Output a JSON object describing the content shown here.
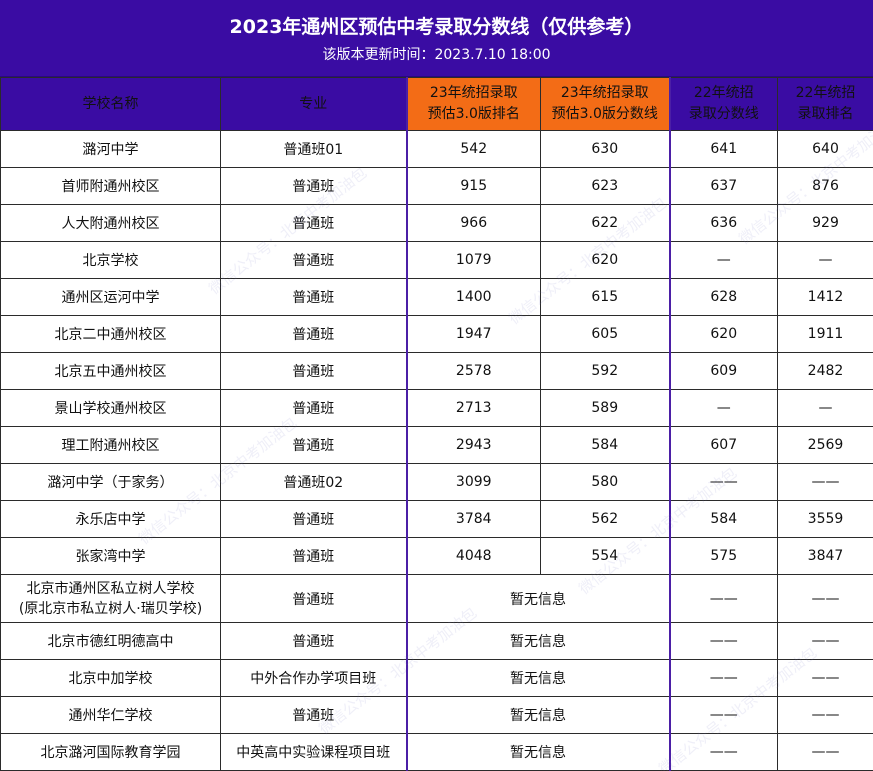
{
  "header": {
    "title": "2023年通州区预估中考录取分数线（仅供参考）",
    "subtitle": "该版本更新时间：2023.7.10 18:00"
  },
  "columns": {
    "school": "学校名称",
    "major": "专业",
    "rank23_line1": "23年统招录取",
    "rank23_line2": "预估3.0版排名",
    "score23_line1": "23年统招录取",
    "score23_line2": "预估3.0版分数线",
    "score22_line1": "22年统招",
    "score22_line2": "录取分数线",
    "rank22_line1": "22年统招",
    "rank22_line2": "录取排名"
  },
  "rows": [
    {
      "school": "潞河中学",
      "major": "普通班01",
      "rank23": "542",
      "score23": "630",
      "score22": "641",
      "rank22": "640"
    },
    {
      "school": "首师附通州校区",
      "major": "普通班",
      "rank23": "915",
      "score23": "623",
      "score22": "637",
      "rank22": "876"
    },
    {
      "school": "人大附通州校区",
      "major": "普通班",
      "rank23": "966",
      "score23": "622",
      "score22": "636",
      "rank22": "929"
    },
    {
      "school": "北京学校",
      "major": "普通班",
      "rank23": "1079",
      "score23": "620",
      "score22": "—",
      "rank22": "—"
    },
    {
      "school": "通州区运河中学",
      "major": "普通班",
      "rank23": "1400",
      "score23": "615",
      "score22": "628",
      "rank22": "1412"
    },
    {
      "school": "北京二中通州校区",
      "major": "普通班",
      "rank23": "1947",
      "score23": "605",
      "score22": "620",
      "rank22": "1911"
    },
    {
      "school": "北京五中通州校区",
      "major": "普通班",
      "rank23": "2578",
      "score23": "592",
      "score22": "609",
      "rank22": "2482"
    },
    {
      "school": "景山学校通州校区",
      "major": "普通班",
      "rank23": "2713",
      "score23": "589",
      "score22": "—",
      "rank22": "—"
    },
    {
      "school": "理工附通州校区",
      "major": "普通班",
      "rank23": "2943",
      "score23": "584",
      "score22": "607",
      "rank22": "2569"
    },
    {
      "school": "潞河中学（于家务）",
      "major": "普通班02",
      "rank23": "3099",
      "score23": "580",
      "score22": "——",
      "rank22": "——"
    },
    {
      "school": "永乐店中学",
      "major": "普通班",
      "rank23": "3784",
      "score23": "562",
      "score22": "584",
      "rank22": "3559"
    },
    {
      "school": "张家湾中学",
      "major": "普通班",
      "rank23": "4048",
      "score23": "554",
      "score22": "575",
      "rank22": "3847"
    }
  ],
  "nodata_rows": [
    {
      "school_line1": "北京市通州区私立树人学校",
      "school_line2": "(原北京市私立树人·瑞贝学校)",
      "major": "普通班",
      "info": "暂无信息",
      "score22": "——",
      "rank22": "——"
    },
    {
      "school_line1": "北京市德红明德高中",
      "school_line2": "",
      "major": "普通班",
      "info": "暂无信息",
      "score22": "——",
      "rank22": "——"
    },
    {
      "school_line1": "北京中加学校",
      "school_line2": "",
      "major": "中外合作办学项目班",
      "info": "暂无信息",
      "score22": "——",
      "rank22": "——"
    },
    {
      "school_line1": "通州华仁学校",
      "school_line2": "",
      "major": "普通班",
      "info": "暂无信息",
      "score22": "——",
      "rank22": "——"
    },
    {
      "school_line1": "北京潞河国际教育学园",
      "school_line2": "",
      "major": "中英高中实验课程项目班",
      "info": "暂无信息",
      "score22": "——",
      "rank22": "——"
    }
  ],
  "watermark": "微信公众号：北京中考加油包",
  "colors": {
    "header": "#3a0ca3",
    "highlight": "#f36c16"
  }
}
